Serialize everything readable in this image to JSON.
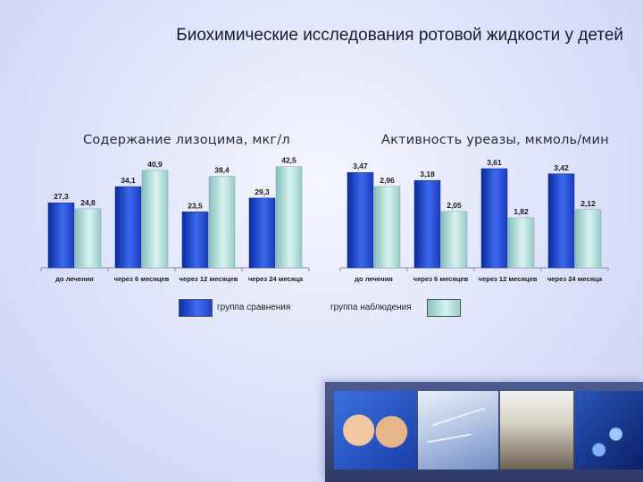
{
  "title": "Биохимические исследования ротовой жидкости у детей",
  "colors": {
    "comparison": "#2a4fe0",
    "observation": "#b9e3df"
  },
  "legend": {
    "comparison": "группа сравнения",
    "observation": "группа наблюдения"
  },
  "chart_data": [
    {
      "type": "bar",
      "title": "Содержание лизоцима, мкг/л",
      "categories": [
        "до лечения",
        "через 6 месяцев",
        "через 12 месяцев",
        "через 24 месяца"
      ],
      "series": [
        {
          "name": "группа сравнения",
          "values": [
            27.3,
            34.1,
            23.5,
            29.3
          ],
          "labels": [
            "27,3",
            "34,1",
            "23,5",
            "29,3"
          ]
        },
        {
          "name": "группа наблюдения",
          "values": [
            24.8,
            40.9,
            38.4,
            42.5
          ],
          "labels": [
            "24,8",
            "40,9",
            "38,4",
            "42,5"
          ]
        }
      ],
      "ylim": [
        0,
        45
      ],
      "grid": false,
      "legend": "bottom"
    },
    {
      "type": "bar",
      "title": "Активность уреазы, мкмоль/мин",
      "categories": [
        "до лечения",
        "через 6 месяцев",
        "через 12 месяцев",
        "через 24 месяца"
      ],
      "series": [
        {
          "name": "группа сравнения",
          "values": [
            3.47,
            3.18,
            3.61,
            3.42
          ],
          "labels": [
            "3,47",
            "3,18",
            "3,61",
            "3,42"
          ]
        },
        {
          "name": "группа наблюдения",
          "values": [
            2.96,
            2.05,
            1.82,
            2.12
          ],
          "labels": [
            "2,96",
            "2,05",
            "1,82",
            "2,12"
          ]
        }
      ],
      "ylim": [
        0,
        3.9
      ],
      "grid": false,
      "legend": "bottom"
    }
  ]
}
